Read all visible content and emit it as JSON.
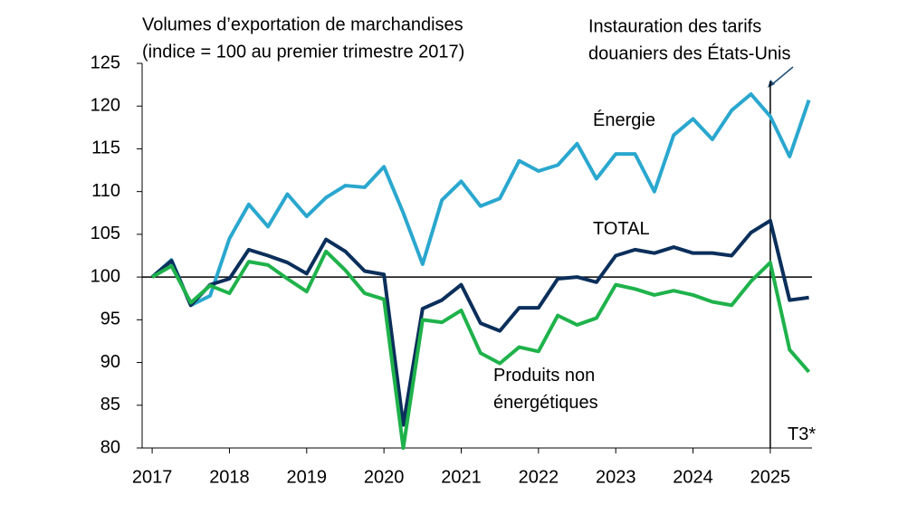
{
  "chart_data": {
    "type": "line",
    "title": [
      "Volumes d’exportation de marchandises",
      "(indice = 100 au premier trimestre 2017)"
    ],
    "annotation": [
      "Instauration des tarifs",
      "douaniers des États-Unis"
    ],
    "annotation_x": 2025,
    "reference_y": 100,
    "note": "T3*",
    "x": [
      2017,
      2017.25,
      2017.5,
      2017.75,
      2018,
      2018.25,
      2018.5,
      2018.75,
      2019,
      2019.25,
      2019.5,
      2019.75,
      2020,
      2020.25,
      2020.5,
      2020.75,
      2021,
      2021.25,
      2021.5,
      2021.75,
      2022,
      2022.25,
      2022.5,
      2022.75,
      2023,
      2023.25,
      2023.5,
      2023.75,
      2024,
      2024.25,
      2024.5,
      2024.75,
      2025,
      2025.25,
      2025.5
    ],
    "series": [
      {
        "name": "Énergie",
        "color": "#2aa7cf",
        "values": [
          100,
          102,
          96.7,
          97.8,
          104.5,
          108.5,
          105.9,
          109.7,
          107.1,
          109.3,
          110.7,
          110.5,
          112.9,
          107.5,
          101.5,
          109,
          111.2,
          108.3,
          109.2,
          113.6,
          112.4,
          113.1,
          115.6,
          111.5,
          114.4,
          114.4,
          110,
          116.6,
          118.5,
          116.1,
          119.5,
          121.4,
          118.8,
          114.1,
          120.7
        ]
      },
      {
        "name": "TOTAL",
        "color": "#0b2f5b",
        "values": [
          100,
          101.9,
          96.7,
          99.1,
          99.8,
          103.2,
          102.5,
          101.7,
          100.4,
          104.4,
          103,
          100.7,
          100.3,
          82.7,
          96.3,
          97.3,
          99.1,
          94.6,
          93.7,
          96.4,
          96.4,
          99.8,
          100,
          99.4,
          102.5,
          103.2,
          102.8,
          103.5,
          102.8,
          102.8,
          102.5,
          105.2,
          106.6,
          97.3,
          97.6
        ]
      },
      {
        "name": "Produits non énergétiques",
        "color": "#1fb24b",
        "values": [
          100,
          101.3,
          97,
          99,
          98.1,
          101.8,
          101.4,
          99.8,
          98.3,
          103,
          100.8,
          98.1,
          97.4,
          80,
          95,
          94.7,
          96.1,
          91.1,
          89.9,
          91.8,
          91.3,
          95.5,
          94.4,
          95.2,
          99.1,
          98.6,
          97.9,
          98.4,
          97.9,
          97.1,
          96.7,
          99.5,
          101.7,
          91.5,
          88.9
        ]
      }
    ],
    "xlim": [
      2016.87,
      2025.54
    ],
    "xticks": [
      2017,
      2018,
      2019,
      2020,
      2021,
      2022,
      2023,
      2024,
      2025
    ],
    "ylim": [
      80,
      125
    ],
    "yticks": [
      80,
      85,
      90,
      95,
      100,
      105,
      110,
      115,
      120,
      125
    ]
  }
}
